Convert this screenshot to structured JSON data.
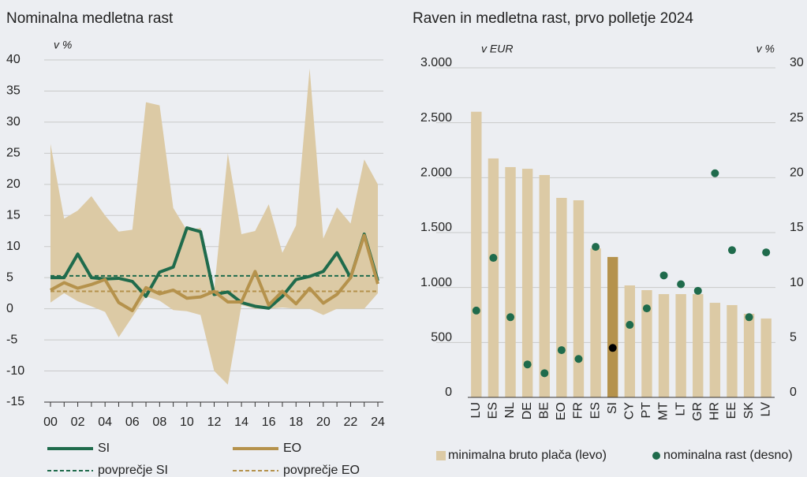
{
  "chart_data": [
    {
      "type": "line",
      "title": "Nominalna medletna rast",
      "y_label": "v %",
      "categories": [
        "00",
        null,
        "02",
        null,
        "04",
        null,
        "06",
        null,
        "08",
        null,
        "10",
        null,
        "12",
        null,
        "14",
        null,
        "16",
        null,
        "18",
        null,
        "20",
        null,
        "22",
        null,
        "24"
      ],
      "ylim": [
        -15,
        40
      ],
      "yticks": [
        40,
        35,
        30,
        25,
        20,
        15,
        10,
        5,
        0,
        -5,
        -10,
        -15
      ],
      "grid": true,
      "band": {
        "color": "#dccaa5",
        "upper": [
          26.5,
          14.5,
          15.8,
          18.1,
          15,
          12.4,
          12.7,
          33.2,
          32.7,
          16.2,
          12.6,
          13,
          3,
          25,
          12,
          12.5,
          16.8,
          9,
          13.4,
          38.6,
          11.3,
          16.3,
          13.7,
          24,
          20
        ],
        "lower": [
          1,
          2.5,
          1.2,
          0.4,
          -0.5,
          -4.6,
          -1.3,
          2,
          1.3,
          -0.2,
          -0.4,
          -1,
          -10,
          -12.2,
          0.6,
          0,
          0,
          0.2,
          0,
          0,
          -1,
          0,
          0,
          0,
          2.5
        ]
      },
      "series": [
        {
          "name": "SI",
          "color": "#1f6b4c",
          "values": [
            5,
            5,
            8.8,
            5,
            4.8,
            4.9,
            4.4,
            2,
            5.9,
            6.7,
            13,
            12.4,
            2.3,
            2.7,
            1,
            0.4,
            0.1,
            2,
            4.7,
            5.2,
            6,
            9,
            5,
            12,
            4.5
          ]
        },
        {
          "name": "EO",
          "color": "#b5924c",
          "values": [
            3,
            4.2,
            3.3,
            3.9,
            4.7,
            1,
            -0.3,
            3.4,
            2.4,
            3,
            1.7,
            1.9,
            2.8,
            1.1,
            1.1,
            6,
            0.6,
            2.8,
            0.8,
            3.3,
            0.9,
            2.3,
            5,
            11.8,
            4
          ]
        }
      ],
      "reference_lines": [
        {
          "name": "povprečje SI",
          "color": "#1f6b4c",
          "value": 5.3,
          "dashed": true
        },
        {
          "name": "povprečje EO",
          "color": "#b5924c",
          "value": 2.8,
          "dashed": true
        }
      ]
    },
    {
      "type": "bar_scatter",
      "title": "Raven in medletna rast, prvo polletje 2024",
      "y_label": "v EUR",
      "y2_label": "v %",
      "categories": [
        "LU",
        "ES",
        "NL",
        "DE",
        "BE",
        "EO",
        "FR",
        "ES",
        "SI",
        "CY",
        "PT",
        "MT",
        "LT",
        "GR",
        "HR",
        "EE",
        "SK",
        "LV"
      ],
      "ylim": [
        0,
        3000
      ],
      "yticks": [
        0,
        500,
        {
          "value": 1000,
          "label": "1.000"
        },
        {
          "value": 1500,
          "label": "1.500"
        },
        {
          "value": 2000,
          "label": "2.000"
        },
        {
          "value": 2500,
          "label": "2.500"
        },
        {
          "value": 3000,
          "label": "3.000"
        }
      ],
      "y2lim": [
        0,
        30
      ],
      "y2ticks": [
        0,
        5,
        10,
        15,
        20,
        25,
        30
      ],
      "grid": true,
      "series": [
        {
          "name": "minimalna bruto plača (levo)",
          "kind": "bar",
          "color": "#dccaa5",
          "colors": [
            "#dccaa5",
            "#dccaa5",
            "#dccaa5",
            "#dccaa5",
            "#dccaa5",
            "#dccaa5",
            "#dccaa5",
            "#dccaa5",
            "#b5924c",
            "#dccaa5",
            "#dccaa5",
            "#dccaa5",
            "#dccaa5",
            "#dccaa5",
            "#dccaa5",
            "#dccaa5",
            "#dccaa5",
            "#dccaa5"
          ],
          "values": [
            2600,
            2175,
            2096,
            2081,
            2024,
            1816,
            1794,
            1356,
            1278,
            1019,
            976,
            940,
            940,
            940,
            861,
            840,
            761,
            718
          ]
        },
        {
          "name": "nominalna rast (desno)",
          "kind": "scatter",
          "axis": "y2",
          "color": "#1f6b4c",
          "colors": [
            "#1f6b4c",
            "#1f6b4c",
            "#1f6b4c",
            "#1f6b4c",
            "#1f6b4c",
            "#1f6b4c",
            "#1f6b4c",
            "#1f6b4c",
            "#000000",
            "#1f6b4c",
            "#1f6b4c",
            "#1f6b4c",
            "#1f6b4c",
            "#1f6b4c",
            "#1f6b4c",
            "#1f6b4c",
            "#1f6b4c",
            "#1f6b4c"
          ],
          "values": [
            7.9,
            12.7,
            7.3,
            3.0,
            2.2,
            4.3,
            3.5,
            13.7,
            4.5,
            6.6,
            8.1,
            11.1,
            10.3,
            9.7,
            20.4,
            13.4,
            7.3,
            13.2
          ]
        }
      ]
    }
  ]
}
